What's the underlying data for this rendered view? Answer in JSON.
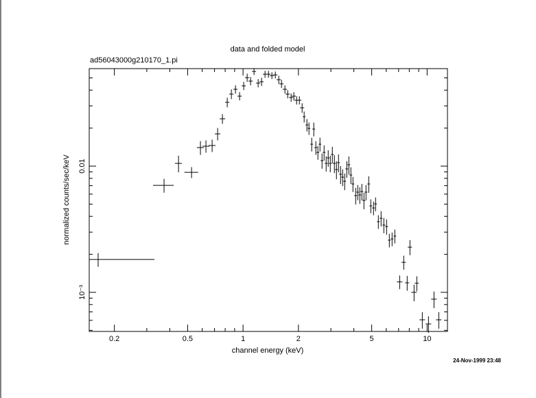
{
  "chart_data": {
    "type": "errorbar",
    "title": "data and folded model",
    "subtitle": "ad56043000g210170_1.pi",
    "x_label": "channel energy (keV)",
    "y_label": "normalized counts/sec/keV",
    "timestamp": "24-Nov-1999 23:48",
    "log_x": true,
    "log_y": true,
    "color": "#000000",
    "xlim": [
      0.146,
      12.9
    ],
    "ylim": [
      0.00049,
      0.0592
    ],
    "xticks": [
      0.2,
      0.5,
      1,
      2,
      5,
      10
    ],
    "xminorticks": [
      0.3,
      0.4,
      0.6,
      0.7,
      0.8,
      0.9,
      3,
      4,
      6,
      7,
      8,
      9
    ],
    "yticks": [
      0.01,
      {
        "value": 0.001,
        "label": "10⁻³"
      }
    ],
    "yminorticks": [
      0.0005,
      0.0006,
      0.0007,
      0.0008,
      0.0009,
      0.002,
      0.003,
      0.004,
      0.005,
      0.006,
      0.007,
      0.008,
      0.009,
      0.02,
      0.03,
      0.04,
      0.05
    ],
    "x": [
      0.1632,
      0.3723,
      0.4461,
      0.5252,
      0.5869,
      0.6287,
      0.6794,
      0.7276,
      0.7729,
      0.8208,
      0.8641,
      0.9099,
      0.958,
      1.0086,
      1.0529,
      1.099,
      1.1474,
      1.2082,
      1.2609,
      1.3164,
      1.3743,
      1.4347,
      1.4975,
      1.5631,
      1.6181,
      1.6888,
      1.7477,
      1.8245,
      1.8884,
      1.9543,
      2.023,
      2.0941,
      2.1478,
      2.2233,
      2.2812,
      2.3608,
      2.4225,
      2.4858,
      2.5508,
      2.6175,
      2.6859,
      2.7561,
      2.8281,
      2.902,
      2.9778,
      3.0557,
      3.1355,
      3.2174,
      3.3015,
      3.3875,
      3.476,
      3.5669,
      3.6601,
      3.7557,
      3.8538,
      3.9545,
      4.0926,
      4.1996,
      4.3093,
      4.4218,
      4.5373,
      4.6558,
      4.8176,
      4.9431,
      5.1156,
      5.2491,
      5.4334,
      5.6234,
      5.8195,
      6.0225,
      6.2344,
      6.452,
      6.6771,
      7.0924,
      7.4645,
      7.7934,
      8.0661,
      8.4941,
      8.7902,
      9.4169,
      10.174,
      10.897,
      11.57
    ],
    "xerr": [
      [
        0.0173,
        0.167
      ],
      0.048,
      0.0192,
      0.0451,
      0.0252,
      0.027,
      0.0292,
      0.025,
      0.0266,
      0.0212,
      0.0223,
      0.0235,
      0.0247,
      0.026,
      0.0271,
      0.0283,
      0.0296,
      0.0311,
      0.0325,
      0.0339,
      0.0354,
      0.037,
      0.0386,
      0.0403,
      0.0417,
      0.0435,
      0.045,
      0.047,
      0.0487,
      0.0504,
      0.0521,
      0.054,
      0.0369,
      0.0382,
      0.0392,
      0.0406,
      0.0416,
      0.0427,
      0.0438,
      0.045,
      0.0462,
      0.0474,
      0.0486,
      0.0499,
      0.0512,
      0.0525,
      0.0539,
      0.0553,
      0.0567,
      0.0582,
      0.0597,
      0.0613,
      0.0629,
      0.0645,
      0.0662,
      0.068,
      0.0703,
      0.0722,
      0.0741,
      0.076,
      0.078,
      0.08,
      0.0828,
      0.0849,
      0.0879,
      0.0902,
      0.0934,
      0.0966,
      0.1,
      0.1035,
      0.1071,
      0.1109,
      0.1147,
      0.2437,
      0.1924,
      0.2009,
      0.2079,
      0.2919,
      0.2266,
      0.3236,
      0.3497,
      0.3745,
      0.3976
    ],
    "values": [
      0.00182,
      0.00704,
      0.01051,
      0.00893,
      0.01402,
      0.01438,
      0.01456,
      0.01801,
      0.02371,
      0.03202,
      0.03722,
      0.04062,
      0.03584,
      0.04324,
      0.05024,
      0.04719,
      0.05623,
      0.04546,
      0.04661,
      0.05349,
      0.05349,
      0.05216,
      0.05282,
      0.04839,
      0.04489,
      0.04062,
      0.03722,
      0.03496,
      0.03584,
      0.03325,
      0.03325,
      0.02897,
      0.02462,
      0.02119,
      0.0199,
      0.01492,
      0.01966,
      0.01402,
      0.01284,
      0.01492,
      0.01105,
      0.01284,
      0.01051,
      0.01162,
      0.01051,
      0.01237,
      0.01051,
      0.00939,
      0.01065,
      0.00861,
      0.00818,
      0.00759,
      0.00951,
      0.01025,
      0.0085,
      0.00722,
      0.00584,
      0.00622,
      0.00591,
      0.00629,
      0.00535,
      0.00622,
      0.00722,
      0.00484,
      0.00466,
      0.00502,
      0.00363,
      0.00386,
      0.00341,
      0.00332,
      0.00259,
      0.00265,
      0.00279,
      0.00121,
      0.00173,
      0.00119,
      0.00228,
      0.001,
      0.00118,
      0.000606,
      0.000562,
      0.000883,
      0.000606
    ],
    "yerr": [
      0.000228,
      0.00088,
      0.00158,
      0.00089,
      0.00175,
      0.00162,
      0.00164,
      0.00203,
      0.00208,
      0.00281,
      0.00326,
      0.00305,
      0.00269,
      0.00325,
      0.00377,
      0.00354,
      0.00352,
      0.00341,
      0.0035,
      0.00335,
      0.00335,
      0.00326,
      0.0033,
      0.00363,
      0.00337,
      0.00305,
      0.00279,
      0.00262,
      0.00269,
      0.0025,
      0.0025,
      0.00254,
      0.00246,
      0.00239,
      0.00224,
      0.00187,
      0.00246,
      0.00175,
      0.00161,
      0.00187,
      0.00152,
      0.00177,
      0.00145,
      0.00174,
      0.00158,
      0.00186,
      0.00171,
      0.00153,
      0.00173,
      0.0014,
      0.00123,
      0.00114,
      0.00143,
      0.00167,
      0.00128,
      0.00099,
      0.00088,
      0.00086,
      0.00089,
      0.00094,
      0.0008,
      0.00086,
      0.00108,
      0.00061,
      0.00058,
      0.00063,
      0.00045,
      0.00053,
      0.00047,
      0.00046,
      0.00032,
      0.00033,
      0.00035,
      0.00015,
      0.00022,
      0.00016,
      0.00031,
      0.00015,
      0.00016,
      9.1e-05,
      8.4e-05,
      0.000133,
      9.1e-05
    ]
  }
}
